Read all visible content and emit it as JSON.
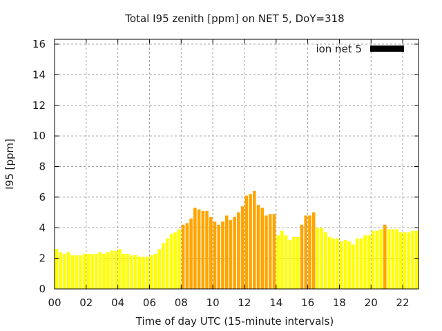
{
  "chart_data": {
    "type": "bar",
    "title": "Total I95 zenith [ppm] on NET 5, DoY=318",
    "xlabel": "Time of day UTC (15-minute intervals)",
    "ylabel": "I95 [ppm]",
    "xlim": [
      0,
      23
    ],
    "ylim": [
      0,
      16.5
    ],
    "x_ticks": [
      "00",
      "02",
      "04",
      "06",
      "08",
      "10",
      "12",
      "14",
      "16",
      "18",
      "20",
      "22"
    ],
    "x_tick_values": [
      0,
      2,
      4,
      6,
      8,
      10,
      12,
      14,
      16,
      18,
      20,
      22
    ],
    "y_ticks": [
      "0",
      "2",
      "4",
      "6",
      "8",
      "10",
      "12",
      "14",
      "16"
    ],
    "y_tick_values": [
      0,
      2,
      4,
      6,
      8,
      10,
      12,
      14,
      16
    ],
    "grid": true,
    "legend": {
      "label": "ion net 5",
      "position": "top-right",
      "color": "#000000"
    },
    "bar_interval_hours": 0.25,
    "colors": {
      "low": "#ffff00",
      "high": "#ffa500"
    },
    "color_threshold_note": "orange bars mark elevated intervals",
    "values": [
      2.6,
      2.4,
      2.3,
      2.4,
      2.2,
      2.2,
      2.2,
      2.3,
      2.3,
      2.3,
      2.3,
      2.4,
      2.3,
      2.4,
      2.5,
      2.5,
      2.6,
      2.3,
      2.3,
      2.2,
      2.2,
      2.1,
      2.1,
      2.1,
      2.2,
      2.3,
      2.6,
      3.0,
      3.3,
      3.6,
      3.7,
      3.9,
      4.2,
      4.3,
      4.6,
      5.3,
      5.2,
      5.1,
      5.1,
      4.7,
      4.4,
      4.2,
      4.4,
      4.8,
      4.5,
      4.7,
      5.0,
      5.4,
      6.1,
      6.2,
      6.4,
      5.5,
      5.3,
      4.8,
      4.9,
      4.9,
      3.5,
      3.8,
      3.5,
      3.2,
      3.4,
      3.4,
      4.2,
      4.8,
      4.8,
      5.0,
      4.0,
      4.0,
      3.7,
      3.4,
      3.3,
      3.3,
      3.1,
      3.2,
      3.1,
      2.9,
      3.3,
      3.3,
      3.5,
      3.5,
      3.8,
      3.8,
      3.9,
      4.2,
      3.9,
      3.9,
      3.9,
      3.7,
      3.7,
      3.7,
      3.8,
      3.8
    ],
    "highlight": [
      0,
      0,
      0,
      0,
      0,
      0,
      0,
      0,
      0,
      0,
      0,
      0,
      0,
      0,
      0,
      0,
      0,
      0,
      0,
      0,
      0,
      0,
      0,
      0,
      0,
      0,
      0,
      0,
      0,
      0,
      0,
      0,
      1,
      1,
      1,
      1,
      1,
      1,
      1,
      1,
      1,
      1,
      1,
      1,
      1,
      1,
      1,
      1,
      1,
      1,
      1,
      1,
      1,
      1,
      1,
      1,
      0,
      0,
      0,
      0,
      0,
      0,
      1,
      1,
      1,
      1,
      0,
      0,
      0,
      0,
      0,
      0,
      0,
      0,
      0,
      0,
      0,
      0,
      0,
      0,
      0,
      0,
      0,
      1,
      0,
      0,
      0,
      0,
      0,
      0,
      0,
      0
    ]
  }
}
